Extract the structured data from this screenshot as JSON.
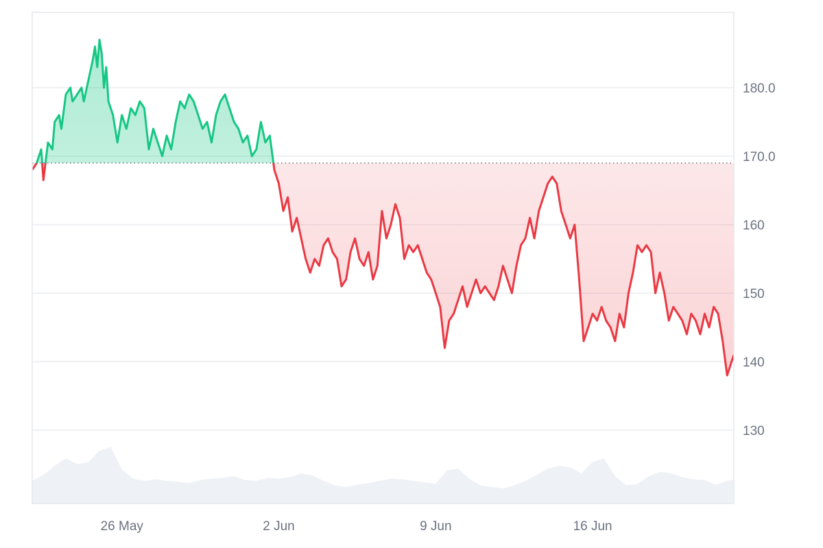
{
  "chart_data": {
    "type": "line",
    "title": "",
    "xlabel": "",
    "ylabel": "",
    "baseline": 169,
    "ylim": [
      120,
      190
    ],
    "y_ticks": [
      {
        "value": 130,
        "label": "130"
      },
      {
        "value": 140,
        "label": "140"
      },
      {
        "value": 150,
        "label": "150"
      },
      {
        "value": 160,
        "label": "160"
      },
      {
        "value": 170,
        "label": "170.0"
      },
      {
        "value": 180,
        "label": "180.0"
      }
    ],
    "x_ticks": [
      {
        "day": 26,
        "label": "26 May"
      },
      {
        "day": 33,
        "label": "2 Jun"
      },
      {
        "day": 40,
        "label": "9 Jun"
      },
      {
        "day": 47,
        "label": "16 Jun"
      }
    ],
    "xlim": [
      22.0,
      53.3
    ],
    "colors": {
      "up": "#16c784",
      "down": "#ea3943",
      "volume": "#eef1f5"
    },
    "series": [
      {
        "values": [
          [
            22.0,
            168
          ],
          [
            22.2,
            169
          ],
          [
            22.4,
            171
          ],
          [
            22.5,
            166.5
          ],
          [
            22.7,
            172
          ],
          [
            22.9,
            171
          ],
          [
            23.0,
            175
          ],
          [
            23.2,
            176
          ],
          [
            23.3,
            174
          ],
          [
            23.5,
            179
          ],
          [
            23.7,
            180
          ],
          [
            23.8,
            178
          ],
          [
            24.0,
            179
          ],
          [
            24.2,
            180
          ],
          [
            24.3,
            178
          ],
          [
            24.5,
            181
          ],
          [
            24.7,
            184
          ],
          [
            24.8,
            186
          ],
          [
            24.9,
            183
          ],
          [
            25.0,
            187
          ],
          [
            25.1,
            185
          ],
          [
            25.2,
            180
          ],
          [
            25.3,
            183
          ],
          [
            25.4,
            178
          ],
          [
            25.6,
            176
          ],
          [
            25.8,
            172
          ],
          [
            26.0,
            176
          ],
          [
            26.2,
            174
          ],
          [
            26.4,
            177
          ],
          [
            26.6,
            176
          ],
          [
            26.8,
            178
          ],
          [
            27.0,
            177
          ],
          [
            27.2,
            171
          ],
          [
            27.4,
            174
          ],
          [
            27.6,
            172
          ],
          [
            27.8,
            170
          ],
          [
            28.0,
            173
          ],
          [
            28.2,
            171
          ],
          [
            28.4,
            175
          ],
          [
            28.6,
            178
          ],
          [
            28.8,
            177
          ],
          [
            29.0,
            179
          ],
          [
            29.2,
            178
          ],
          [
            29.4,
            176
          ],
          [
            29.6,
            174
          ],
          [
            29.8,
            175
          ],
          [
            30.0,
            172
          ],
          [
            30.2,
            176
          ],
          [
            30.4,
            178
          ],
          [
            30.6,
            179
          ],
          [
            30.8,
            177
          ],
          [
            31.0,
            175
          ],
          [
            31.2,
            174
          ],
          [
            31.4,
            172
          ],
          [
            31.6,
            173
          ],
          [
            31.8,
            170
          ],
          [
            32.0,
            171
          ],
          [
            32.2,
            175
          ],
          [
            32.4,
            172
          ],
          [
            32.6,
            173
          ],
          [
            32.8,
            168
          ],
          [
            33.0,
            166
          ],
          [
            33.2,
            162
          ],
          [
            33.4,
            164
          ],
          [
            33.6,
            159
          ],
          [
            33.8,
            161
          ],
          [
            34.0,
            158
          ],
          [
            34.2,
            155
          ],
          [
            34.4,
            153
          ],
          [
            34.6,
            155
          ],
          [
            34.8,
            154
          ],
          [
            35.0,
            157
          ],
          [
            35.2,
            158
          ],
          [
            35.4,
            156
          ],
          [
            35.6,
            155
          ],
          [
            35.8,
            151
          ],
          [
            36.0,
            152
          ],
          [
            36.2,
            156
          ],
          [
            36.4,
            158
          ],
          [
            36.6,
            155
          ],
          [
            36.8,
            154
          ],
          [
            37.0,
            156
          ],
          [
            37.2,
            152
          ],
          [
            37.4,
            154
          ],
          [
            37.6,
            162
          ],
          [
            37.8,
            158
          ],
          [
            38.0,
            160
          ],
          [
            38.2,
            163
          ],
          [
            38.4,
            161
          ],
          [
            38.6,
            155
          ],
          [
            38.8,
            157
          ],
          [
            39.0,
            156
          ],
          [
            39.2,
            157
          ],
          [
            39.4,
            155
          ],
          [
            39.6,
            153
          ],
          [
            39.8,
            152
          ],
          [
            40.0,
            150
          ],
          [
            40.2,
            148
          ],
          [
            40.4,
            142
          ],
          [
            40.6,
            146
          ],
          [
            40.8,
            147
          ],
          [
            41.0,
            149
          ],
          [
            41.2,
            151
          ],
          [
            41.4,
            148
          ],
          [
            41.6,
            150
          ],
          [
            41.8,
            152
          ],
          [
            42.0,
            150
          ],
          [
            42.2,
            151
          ],
          [
            42.4,
            150
          ],
          [
            42.6,
            149
          ],
          [
            42.8,
            151
          ],
          [
            43.0,
            154
          ],
          [
            43.2,
            152
          ],
          [
            43.4,
            150
          ],
          [
            43.6,
            154
          ],
          [
            43.8,
            157
          ],
          [
            44.0,
            158
          ],
          [
            44.2,
            161
          ],
          [
            44.4,
            158
          ],
          [
            44.6,
            162
          ],
          [
            44.8,
            164
          ],
          [
            45.0,
            166
          ],
          [
            45.2,
            167
          ],
          [
            45.4,
            166
          ],
          [
            45.6,
            162
          ],
          [
            45.8,
            160
          ],
          [
            46.0,
            158
          ],
          [
            46.2,
            160
          ],
          [
            46.4,
            152
          ],
          [
            46.6,
            143
          ],
          [
            46.8,
            145
          ],
          [
            47.0,
            147
          ],
          [
            47.2,
            146
          ],
          [
            47.4,
            148
          ],
          [
            47.6,
            146
          ],
          [
            47.8,
            145
          ],
          [
            48.0,
            143
          ],
          [
            48.2,
            147
          ],
          [
            48.4,
            145
          ],
          [
            48.6,
            150
          ],
          [
            48.8,
            153
          ],
          [
            49.0,
            157
          ],
          [
            49.2,
            156
          ],
          [
            49.4,
            157
          ],
          [
            49.6,
            156
          ],
          [
            49.8,
            150
          ],
          [
            50.0,
            153
          ],
          [
            50.2,
            150
          ],
          [
            50.4,
            146
          ],
          [
            50.6,
            148
          ],
          [
            50.8,
            147
          ],
          [
            51.0,
            146
          ],
          [
            51.2,
            144
          ],
          [
            51.4,
            147
          ],
          [
            51.6,
            146
          ],
          [
            51.8,
            144
          ],
          [
            52.0,
            147
          ],
          [
            52.2,
            145
          ],
          [
            52.4,
            148
          ],
          [
            52.6,
            147
          ],
          [
            52.8,
            143
          ],
          [
            53.0,
            138
          ],
          [
            53.2,
            140
          ],
          [
            53.3,
            141
          ]
        ]
      }
    ],
    "volume": [
      [
        22.0,
        0.3
      ],
      [
        22.5,
        0.38
      ],
      [
        23.0,
        0.5
      ],
      [
        23.5,
        0.6
      ],
      [
        24.0,
        0.52
      ],
      [
        24.5,
        0.55
      ],
      [
        25.0,
        0.7
      ],
      [
        25.5,
        0.75
      ],
      [
        26.0,
        0.45
      ],
      [
        26.5,
        0.33
      ],
      [
        27.0,
        0.3
      ],
      [
        27.5,
        0.32
      ],
      [
        28.0,
        0.3
      ],
      [
        28.5,
        0.29
      ],
      [
        29.0,
        0.27
      ],
      [
        29.5,
        0.31
      ],
      [
        30.0,
        0.33
      ],
      [
        30.5,
        0.34
      ],
      [
        31.0,
        0.36
      ],
      [
        31.5,
        0.31
      ],
      [
        32.0,
        0.3
      ],
      [
        32.5,
        0.34
      ],
      [
        33.0,
        0.33
      ],
      [
        33.5,
        0.35
      ],
      [
        34.0,
        0.4
      ],
      [
        34.5,
        0.37
      ],
      [
        35.0,
        0.3
      ],
      [
        35.5,
        0.24
      ],
      [
        36.0,
        0.22
      ],
      [
        36.5,
        0.25
      ],
      [
        37.0,
        0.27
      ],
      [
        37.5,
        0.3
      ],
      [
        38.0,
        0.33
      ],
      [
        38.5,
        0.32
      ],
      [
        39.0,
        0.3
      ],
      [
        39.5,
        0.28
      ],
      [
        40.0,
        0.26
      ],
      [
        40.5,
        0.44
      ],
      [
        41.0,
        0.46
      ],
      [
        41.5,
        0.33
      ],
      [
        42.0,
        0.24
      ],
      [
        42.5,
        0.22
      ],
      [
        43.0,
        0.2
      ],
      [
        43.5,
        0.24
      ],
      [
        44.0,
        0.3
      ],
      [
        44.5,
        0.38
      ],
      [
        45.0,
        0.46
      ],
      [
        45.5,
        0.5
      ],
      [
        46.0,
        0.48
      ],
      [
        46.5,
        0.4
      ],
      [
        47.0,
        0.55
      ],
      [
        47.5,
        0.6
      ],
      [
        48.0,
        0.36
      ],
      [
        48.5,
        0.24
      ],
      [
        49.0,
        0.26
      ],
      [
        49.5,
        0.36
      ],
      [
        50.0,
        0.42
      ],
      [
        50.5,
        0.4
      ],
      [
        51.0,
        0.35
      ],
      [
        51.5,
        0.32
      ],
      [
        52.0,
        0.31
      ],
      [
        52.5,
        0.25
      ],
      [
        53.0,
        0.3
      ],
      [
        53.3,
        0.32
      ]
    ]
  }
}
